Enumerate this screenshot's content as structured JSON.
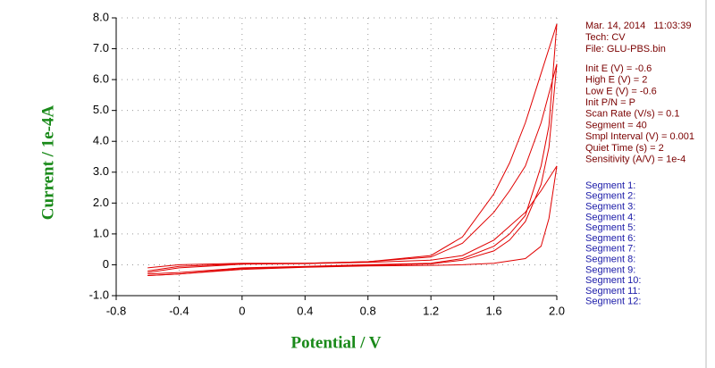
{
  "chart_data": {
    "type": "line",
    "x_label": "Potential / V",
    "y_label": "Current / 1e-4A",
    "xlim": [
      -0.8,
      2.0
    ],
    "ylim": [
      -1.0,
      8.0
    ],
    "xticks": [
      {
        "value": -0.8,
        "label": "-0.8"
      },
      {
        "value": -0.4,
        "label": "-0.4"
      },
      0,
      {
        "value": 0.4,
        "label": "0.4"
      },
      {
        "value": 0.8,
        "label": "0.8"
      },
      {
        "value": 1.2,
        "label": "1.2"
      },
      {
        "value": 1.6,
        "label": "1.6"
      },
      {
        "value": 2,
        "label": "2.0"
      }
    ],
    "yticks": [
      {
        "value": -1,
        "label": "-1.0"
      },
      0,
      {
        "value": 1,
        "label": "1.0"
      },
      {
        "value": 2,
        "label": "2.0"
      },
      {
        "value": 3,
        "label": "3.0"
      },
      {
        "value": 4,
        "label": "4.0"
      },
      {
        "value": 5,
        "label": "5.0"
      },
      {
        "value": 6,
        "label": "6.0"
      },
      {
        "value": 7,
        "label": "7.0"
      },
      {
        "value": 8,
        "label": "8.0"
      }
    ],
    "grid": true,
    "series": [
      {
        "color": "#e00000",
        "x": [
          -0.6,
          -0.4,
          0,
          0.4,
          0.8,
          1.2,
          1.4,
          1.6,
          1.7,
          1.8,
          1.9,
          2.0
        ],
        "values": [
          -0.1,
          0,
          0.05,
          0.05,
          0.1,
          0.3,
          0.9,
          2.3,
          3.3,
          4.6,
          6.2,
          7.8
        ]
      },
      {
        "color": "#e00000",
        "x": [
          2.0,
          1.95,
          1.9,
          1.8,
          1.7,
          1.6,
          1.4,
          1.2,
          0.8,
          0.4,
          0,
          -0.4,
          -0.6
        ],
        "values": [
          7.8,
          4.5,
          3.2,
          1.6,
          1.0,
          0.6,
          0.2,
          0.05,
          0,
          -0.05,
          -0.1,
          -0.25,
          -0.3
        ]
      },
      {
        "color": "#e00000",
        "x": [
          -0.6,
          -0.4,
          0,
          0.4,
          0.8,
          1.2,
          1.4,
          1.6,
          1.7,
          1.8,
          1.9,
          2.0
        ],
        "values": [
          -0.2,
          -0.05,
          0.03,
          0.05,
          0.1,
          0.25,
          0.7,
          1.7,
          2.4,
          3.2,
          4.6,
          6.5
        ]
      },
      {
        "color": "#e00000",
        "x": [
          2.0,
          1.95,
          1.9,
          1.8,
          1.7,
          1.6,
          1.4,
          1.2,
          0.8,
          0.4,
          0,
          -0.4,
          -0.6
        ],
        "values": [
          6.5,
          3.8,
          2.6,
          1.4,
          0.8,
          0.45,
          0.15,
          0.03,
          -0.02,
          -0.07,
          -0.12,
          -0.3,
          -0.35
        ]
      },
      {
        "color": "#e00000",
        "x": [
          -0.6,
          -0.4,
          0,
          0.4,
          0.8,
          1.2,
          1.4,
          1.6,
          1.8,
          1.9,
          2.0
        ],
        "values": [
          -0.25,
          -0.1,
          0.02,
          0.04,
          0.08,
          0.15,
          0.3,
          0.8,
          1.7,
          2.4,
          3.2
        ]
      },
      {
        "color": "#e00000",
        "x": [
          2.0,
          1.95,
          1.9,
          1.8,
          1.6,
          1.4,
          1.2,
          0.8,
          0.4,
          0,
          -0.4,
          -0.6
        ],
        "values": [
          3.2,
          1.5,
          0.6,
          0.2,
          0.05,
          0,
          -0.02,
          -0.04,
          -0.08,
          -0.15,
          -0.3,
          -0.35
        ]
      }
    ]
  },
  "info_header": [
    "Mar. 14, 2014   11:03:39",
    "Tech: CV",
    "File: GLU-PBS.bin"
  ],
  "info_params": [
    "Init E (V) = -0.6",
    "High E (V) = 2",
    "Low E (V) = -0.6",
    "Init P/N = P",
    "Scan Rate (V/s) = 0.1",
    "Segment = 40",
    "Smpl Interval (V) = 0.001",
    "Quiet Time (s) = 2",
    "Sensitivity (A/V) = 1e-4"
  ],
  "segment_labels": [
    "Segment 1:",
    "Segment 2:",
    "Segment 3:",
    "Segment 4:",
    "Segment 5:",
    "Segment 6:",
    "Segment 7:",
    "Segment 8:",
    "Segment 9:",
    "Segment 10:",
    "Segment 11:",
    "Segment 12:"
  ]
}
